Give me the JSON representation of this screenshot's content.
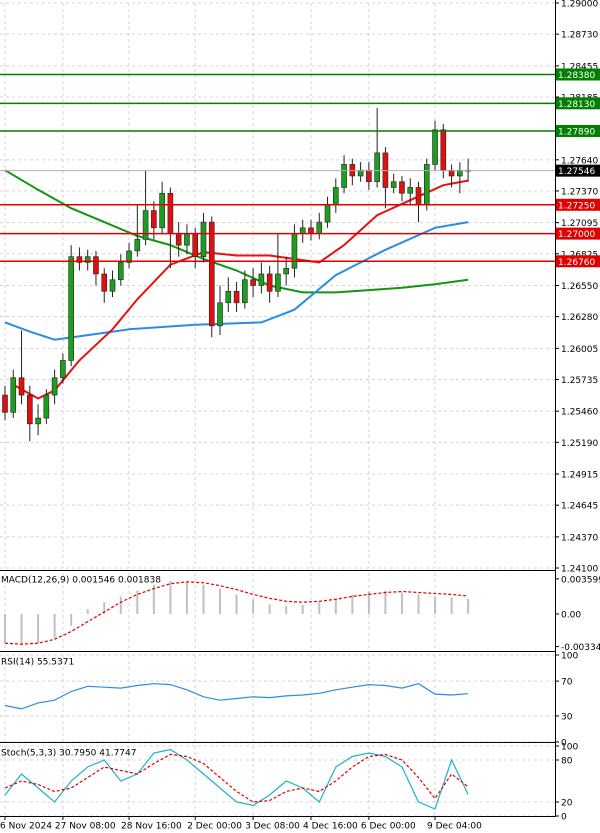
{
  "chart_data": [
    {
      "type": "candlestick",
      "ylim": [
        1.241,
        1.29
      ],
      "yticks": [
        {
          "value": 1.29,
          "label": "1.29000"
        },
        {
          "value": 1.2873,
          "label": "1.28730"
        },
        {
          "value": 1.28455,
          "label": "1.28455"
        },
        {
          "value": 1.28185,
          "label": "1.28185"
        },
        {
          "value": 1.2764,
          "label": "1.27640"
        },
        {
          "value": 1.2737,
          "label": "1.27370"
        },
        {
          "value": 1.27095,
          "label": "1.27095"
        },
        {
          "value": 1.26825,
          "label": "1.26825"
        },
        {
          "value": 1.2655,
          "label": "1.26550"
        },
        {
          "value": 1.2628,
          "label": "1.26280"
        },
        {
          "value": 1.26005,
          "label": "1.26005"
        },
        {
          "value": 1.25735,
          "label": "1.25735"
        },
        {
          "value": 1.2546,
          "label": "1.25460"
        },
        {
          "value": 1.2519,
          "label": "1.25190"
        },
        {
          "value": 1.24915,
          "label": "1.24915"
        },
        {
          "value": 1.24645,
          "label": "1.24645"
        },
        {
          "value": 1.2437,
          "label": "1.24370"
        },
        {
          "value": 1.241,
          "label": "1.24100"
        }
      ],
      "xticks": [
        {
          "value": 0,
          "label": "6 Nov 2024"
        },
        {
          "value": 7,
          "label": "27 Nov 08:00"
        },
        {
          "value": 15,
          "label": "28 Nov 16:00"
        },
        {
          "value": 23,
          "label": "2 Dec 00:00"
        },
        {
          "value": 30,
          "label": "3 Dec 08:00"
        },
        {
          "value": 37,
          "label": "4 Dec 16:00"
        },
        {
          "value": 44,
          "label": "6 Dec 00:00"
        },
        {
          "value": 52,
          "label": "9 Dec 04:00"
        }
      ],
      "grid": true,
      "up_color": "#1e9e1e",
      "down_color": "#e01010",
      "open": [
        1.256,
        1.2545,
        1.2575,
        1.256,
        1.2535,
        1.254,
        1.256,
        1.2575,
        1.259,
        1.268,
        1.2675,
        1.268,
        1.2665,
        1.265,
        1.266,
        1.2675,
        1.2685,
        1.2695,
        1.272,
        1.2705,
        1.2735,
        1.27,
        1.269,
        1.27,
        1.268,
        1.271,
        1.262,
        1.264,
        1.265,
        1.264,
        1.266,
        1.2655,
        1.2665,
        1.265,
        1.2665,
        1.267,
        1.27,
        1.2705,
        1.27,
        1.271,
        1.2725,
        1.274,
        1.276,
        1.275,
        1.2755,
        1.2745,
        1.277,
        1.274,
        1.2745,
        1.2735,
        1.274,
        1.2725,
        1.276,
        1.279,
        1.2755,
        1.275,
        1.2755
      ],
      "high": [
        1.2568,
        1.2582,
        1.2616,
        1.2568,
        1.2552,
        1.2565,
        1.2582,
        1.2596,
        1.269,
        1.2688,
        1.2686,
        1.2685,
        1.267,
        1.2668,
        1.2682,
        1.2692,
        1.2725,
        1.2755,
        1.2728,
        1.2745,
        1.274,
        1.271,
        1.2708,
        1.2705,
        1.2718,
        1.2715,
        1.2655,
        1.2662,
        1.2658,
        1.2668,
        1.267,
        1.2675,
        1.2672,
        1.27,
        1.268,
        1.2708,
        1.2712,
        1.2712,
        1.2718,
        1.2732,
        1.2748,
        1.2768,
        1.2765,
        1.2762,
        1.2762,
        1.2809,
        1.2775,
        1.2752,
        1.275,
        1.2748,
        1.2745,
        1.2765,
        1.2798,
        1.2795,
        1.276,
        1.2762,
        1.2765
      ],
      "low": [
        1.2538,
        1.254,
        1.2552,
        1.252,
        1.2525,
        1.2535,
        1.2552,
        1.257,
        1.2585,
        1.2668,
        1.2668,
        1.2655,
        1.264,
        1.2645,
        1.2655,
        1.267,
        1.268,
        1.269,
        1.2695,
        1.27,
        1.267,
        1.268,
        1.2682,
        1.267,
        1.2675,
        1.261,
        1.2612,
        1.2632,
        1.2632,
        1.2635,
        1.2645,
        1.2648,
        1.264,
        1.2645,
        1.2655,
        1.2662,
        1.2692,
        1.2694,
        1.2695,
        1.2705,
        1.2718,
        1.2735,
        1.2742,
        1.2745,
        1.2738,
        1.274,
        1.2722,
        1.2735,
        1.2728,
        1.2725,
        1.271,
        1.272,
        1.2755,
        1.2748,
        1.274,
        1.2735,
        1.2745
      ],
      "close": [
        1.2545,
        1.2575,
        1.256,
        1.2535,
        1.254,
        1.256,
        1.2575,
        1.259,
        1.268,
        1.2675,
        1.268,
        1.2665,
        1.265,
        1.266,
        1.2675,
        1.2685,
        1.2695,
        1.272,
        1.2705,
        1.2735,
        1.27,
        1.269,
        1.27,
        1.268,
        1.271,
        1.262,
        1.264,
        1.265,
        1.264,
        1.266,
        1.2655,
        1.2665,
        1.265,
        1.2665,
        1.267,
        1.27,
        1.2705,
        1.27,
        1.271,
        1.2725,
        1.274,
        1.276,
        1.275,
        1.2755,
        1.2745,
        1.277,
        1.274,
        1.2745,
        1.2735,
        1.274,
        1.2725,
        1.276,
        1.279,
        1.2755,
        1.275,
        1.2755,
        1.27546
      ],
      "series": [
        {
          "color": "#129612",
          "x": [
            0,
            4,
            8,
            12,
            16,
            20,
            24,
            28,
            32,
            36,
            40,
            44,
            48,
            52,
            56
          ],
          "values": [
            1.2755,
            1.2738,
            1.2722,
            1.271,
            1.2698,
            1.269,
            1.2678,
            1.2668,
            1.2655,
            1.2649,
            1.2649,
            1.2651,
            1.2653,
            1.2656,
            1.266
          ]
        },
        {
          "color": "#2b8ce6",
          "x": [
            0,
            3,
            6,
            10,
            15,
            23,
            31,
            35,
            40,
            46,
            52,
            56
          ],
          "values": [
            1.2623,
            1.2615,
            1.2608,
            1.2612,
            1.2617,
            1.2621,
            1.2623,
            1.2634,
            1.2664,
            1.2686,
            1.2705,
            1.271
          ]
        },
        {
          "color": "#e81010",
          "x": [
            1,
            4,
            6,
            9,
            13,
            16,
            20,
            24,
            28,
            32,
            36,
            38,
            41,
            45,
            49,
            53,
            56
          ],
          "values": [
            1.2569,
            1.2557,
            1.2564,
            1.259,
            1.2617,
            1.2643,
            1.2673,
            1.2684,
            1.2681,
            1.2681,
            1.2677,
            1.2675,
            1.269,
            1.2716,
            1.2729,
            1.2742,
            1.2746
          ]
        }
      ],
      "levels": [
        {
          "value": 1.2838,
          "label": "1.28380",
          "color": "#008000"
        },
        {
          "value": 1.2813,
          "label": "1.28130",
          "color": "#008000"
        },
        {
          "value": 1.2789,
          "label": "1.27890",
          "color": "#008000"
        },
        {
          "value": 1.2725,
          "label": "1.27250",
          "color": "#e00000"
        },
        {
          "value": 1.27,
          "label": "1.27000",
          "color": "#e00000"
        },
        {
          "value": 1.2676,
          "label": "1.26760",
          "color": "#e00000"
        }
      ],
      "current": {
        "value": 1.27546,
        "label": "1.27546",
        "color": "#000000"
      }
    },
    {
      "type": "macd",
      "title": "MACD(12,26,9) 0.001546 0.001838",
      "ylim": [
        -0.0037,
        0.0042
      ],
      "yticks": [
        0.003599,
        {
          "value": 0,
          "label": "0.00"
        },
        -0.003345
      ],
      "grid": false,
      "series": [
        {
          "kind": "histogram",
          "color": "#c0c0c0",
          "x": [
            0,
            2,
            4,
            6,
            8,
            10,
            12,
            14,
            16,
            18,
            20,
            22,
            24,
            26,
            28,
            30,
            32,
            34,
            36,
            38,
            40,
            42,
            44,
            46,
            48,
            50,
            52,
            54,
            56
          ],
          "values": [
            -0.003,
            -0.0032,
            -0.003,
            -0.0025,
            -0.0012,
            0.0005,
            0.0012,
            0.0018,
            0.0024,
            0.003,
            0.0034,
            0.0033,
            0.003,
            0.0026,
            0.002,
            0.0015,
            0.001,
            0.0008,
            0.0009,
            0.0012,
            0.0016,
            0.002,
            0.0023,
            0.0024,
            0.0022,
            0.002,
            0.0018,
            0.0017,
            0.001546
          ]
        },
        {
          "kind": "line",
          "dashed": true,
          "color": "#e00000",
          "x": [
            0,
            2,
            4,
            6,
            8,
            10,
            12,
            14,
            16,
            18,
            20,
            22,
            24,
            26,
            28,
            30,
            32,
            34,
            36,
            38,
            40,
            42,
            44,
            46,
            48,
            50,
            52,
            54,
            56
          ],
          "values": [
            -0.003,
            -0.0031,
            -0.003,
            -0.0026,
            -0.0018,
            -0.0008,
            0.0002,
            0.0012,
            0.002,
            0.0026,
            0.0031,
            0.0033,
            0.0032,
            0.0029,
            0.0025,
            0.002,
            0.0016,
            0.0013,
            0.0012,
            0.0013,
            0.0015,
            0.0018,
            0.002,
            0.0022,
            0.0023,
            0.0022,
            0.0021,
            0.002,
            0.001838
          ]
        }
      ]
    },
    {
      "type": "rsi",
      "title": "RSI(14) 55.5371",
      "ylim": [
        0,
        100
      ],
      "yticks": [
        100,
        70,
        30,
        0
      ],
      "grid": true,
      "series": [
        {
          "kind": "line",
          "color": "#2b8ce6",
          "x": [
            0,
            2,
            4,
            6,
            8,
            10,
            12,
            14,
            16,
            18,
            20,
            22,
            24,
            26,
            28,
            30,
            32,
            34,
            36,
            38,
            40,
            42,
            44,
            46,
            48,
            50,
            52,
            54,
            56
          ],
          "values": [
            42,
            38,
            45,
            48,
            58,
            64,
            63,
            62,
            65,
            67,
            66,
            60,
            52,
            48,
            50,
            52,
            51,
            53,
            54,
            56,
            60,
            63,
            66,
            65,
            62,
            67,
            55,
            54,
            55.5371
          ]
        }
      ]
    },
    {
      "type": "stoch",
      "title": "Stoch(5,3,3) 30.7950 41.7747",
      "ylim": [
        0,
        100
      ],
      "yticks": [
        100,
        80,
        20,
        0
      ],
      "grid": true,
      "series": [
        {
          "kind": "line",
          "color": "#20b2c8",
          "x": [
            0,
            2,
            4,
            6,
            8,
            10,
            12,
            14,
            16,
            18,
            20,
            22,
            24,
            26,
            28,
            30,
            32,
            34,
            36,
            38,
            40,
            42,
            44,
            46,
            48,
            50,
            52,
            54,
            56
          ],
          "values": [
            30,
            60,
            40,
            20,
            50,
            70,
            80,
            50,
            60,
            90,
            95,
            80,
            60,
            40,
            20,
            15,
            30,
            50,
            40,
            20,
            70,
            85,
            90,
            85,
            70,
            20,
            10,
            80,
            30.795
          ]
        },
        {
          "kind": "line",
          "dashed": true,
          "color": "#e00000",
          "x": [
            0,
            2,
            4,
            6,
            8,
            10,
            12,
            14,
            16,
            18,
            20,
            22,
            24,
            26,
            28,
            30,
            32,
            34,
            36,
            38,
            40,
            42,
            44,
            46,
            48,
            50,
            52,
            54,
            56
          ],
          "values": [
            40,
            50,
            45,
            35,
            40,
            55,
            70,
            65,
            60,
            75,
            88,
            85,
            75,
            55,
            35,
            20,
            22,
            35,
            40,
            35,
            50,
            70,
            85,
            88,
            80,
            55,
            25,
            60,
            41.7747
          ]
        }
      ]
    }
  ]
}
